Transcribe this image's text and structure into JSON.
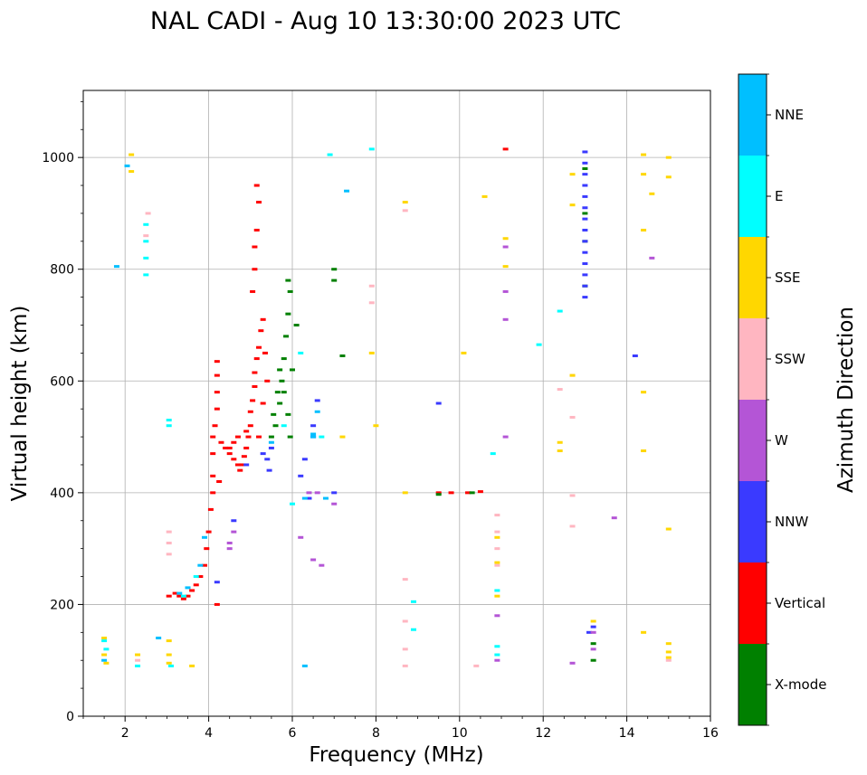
{
  "chart_data": {
    "type": "scatter",
    "title": "NAL CADI - Aug 10 13:30:00 2023 UTC",
    "xlabel": "Frequency (MHz)",
    "ylabel": "Virtual height (km)",
    "xlim": [
      1,
      16
    ],
    "ylim": [
      0,
      1120
    ],
    "xticks": [
      2,
      4,
      6,
      8,
      10,
      12,
      14,
      16
    ],
    "yticks": [
      0,
      200,
      400,
      600,
      800,
      1000
    ],
    "grid": true,
    "colorbar": {
      "label": "Azimuth Direction",
      "categories": [
        "X-mode",
        "Vertical",
        "NNW",
        "W",
        "SSW",
        "SSE",
        "E",
        "NNE"
      ],
      "colors": [
        "#008000",
        "#ff0000",
        "#3a3aff",
        "#b455d6",
        "#ffb6c1",
        "#ffd700",
        "#00ffff",
        "#00bfff"
      ]
    },
    "series": [
      {
        "name": "Vertical",
        "color": "#ff0000",
        "points": [
          [
            3.2,
            220
          ],
          [
            3.3,
            215
          ],
          [
            3.4,
            210
          ],
          [
            3.5,
            215
          ],
          [
            3.6,
            225
          ],
          [
            3.7,
            235
          ],
          [
            3.8,
            250
          ],
          [
            3.9,
            270
          ],
          [
            3.95,
            300
          ],
          [
            4.0,
            330
          ],
          [
            4.05,
            370
          ],
          [
            4.1,
            400
          ],
          [
            4.1,
            430
          ],
          [
            4.1,
            470
          ],
          [
            4.1,
            500
          ],
          [
            4.15,
            520
          ],
          [
            4.2,
            550
          ],
          [
            4.2,
            580
          ],
          [
            4.2,
            610
          ],
          [
            4.2,
            635
          ],
          [
            4.3,
            490
          ],
          [
            4.4,
            480
          ],
          [
            4.5,
            470
          ],
          [
            4.6,
            460
          ],
          [
            4.7,
            450
          ],
          [
            4.75,
            440
          ],
          [
            4.8,
            450
          ],
          [
            4.85,
            465
          ],
          [
            4.9,
            480
          ],
          [
            4.95,
            500
          ],
          [
            5.0,
            520
          ],
          [
            5.0,
            545
          ],
          [
            5.05,
            565
          ],
          [
            5.1,
            590
          ],
          [
            5.1,
            615
          ],
          [
            5.15,
            640
          ],
          [
            5.2,
            660
          ],
          [
            5.25,
            690
          ],
          [
            5.3,
            710
          ],
          [
            5.05,
            760
          ],
          [
            5.1,
            800
          ],
          [
            5.1,
            840
          ],
          [
            5.15,
            870
          ],
          [
            5.2,
            920
          ],
          [
            5.15,
            950
          ],
          [
            4.5,
            480
          ],
          [
            4.6,
            490
          ],
          [
            4.7,
            500
          ],
          [
            4.9,
            510
          ],
          [
            5.2,
            500
          ],
          [
            5.3,
            560
          ],
          [
            5.4,
            600
          ],
          [
            5.35,
            650
          ],
          [
            9.5,
            400
          ],
          [
            9.8,
            400
          ],
          [
            10.2,
            400
          ],
          [
            10.5,
            402
          ],
          [
            11.1,
            1015
          ],
          [
            4.2,
            200
          ],
          [
            4.25,
            420
          ],
          [
            3.05,
            215
          ]
        ]
      },
      {
        "name": "X-mode",
        "color": "#008000",
        "points": [
          [
            5.6,
            520
          ],
          [
            5.7,
            560
          ],
          [
            5.75,
            600
          ],
          [
            5.8,
            640
          ],
          [
            5.85,
            680
          ],
          [
            5.9,
            720
          ],
          [
            5.95,
            760
          ],
          [
            5.9,
            780
          ],
          [
            5.5,
            500
          ],
          [
            5.55,
            540
          ],
          [
            5.65,
            580
          ],
          [
            5.7,
            620
          ],
          [
            5.8,
            580
          ],
          [
            5.9,
            540
          ],
          [
            5.95,
            500
          ],
          [
            6.0,
            620
          ],
          [
            6.1,
            700
          ],
          [
            7.0,
            800
          ],
          [
            7.2,
            645
          ],
          [
            9.5,
            397
          ],
          [
            10.3,
            400
          ],
          [
            13.0,
            980
          ],
          [
            13.0,
            900
          ],
          [
            13.0,
            850
          ],
          [
            13.0,
            770
          ],
          [
            13.2,
            100
          ],
          [
            13.2,
            130
          ],
          [
            7.0,
            780
          ]
        ]
      },
      {
        "name": "NNW",
        "color": "#3a3aff",
        "points": [
          [
            13.0,
            1010
          ],
          [
            13.0,
            990
          ],
          [
            13.0,
            970
          ],
          [
            13.0,
            950
          ],
          [
            13.0,
            930
          ],
          [
            13.0,
            910
          ],
          [
            13.0,
            890
          ],
          [
            13.0,
            870
          ],
          [
            13.0,
            850
          ],
          [
            13.0,
            830
          ],
          [
            13.0,
            810
          ],
          [
            13.0,
            790
          ],
          [
            13.0,
            770
          ],
          [
            13.0,
            750
          ],
          [
            5.4,
            460
          ],
          [
            5.5,
            480
          ],
          [
            5.45,
            440
          ],
          [
            5.3,
            470
          ],
          [
            4.9,
            450
          ],
          [
            6.5,
            500
          ],
          [
            6.5,
            520
          ],
          [
            6.2,
            430
          ],
          [
            6.3,
            460
          ],
          [
            6.4,
            390
          ],
          [
            6.6,
            565
          ],
          [
            7.0,
            400
          ],
          [
            9.5,
            560
          ],
          [
            14.2,
            645
          ],
          [
            13.2,
            160
          ],
          [
            13.1,
            150
          ],
          [
            4.6,
            350
          ],
          [
            4.2,
            240
          ]
        ]
      },
      {
        "name": "W",
        "color": "#b455d6",
        "points": [
          [
            4.6,
            330
          ],
          [
            4.5,
            310
          ],
          [
            4.5,
            300
          ],
          [
            6.4,
            400
          ],
          [
            6.6,
            400
          ],
          [
            6.5,
            280
          ],
          [
            6.7,
            270
          ],
          [
            7.0,
            380
          ],
          [
            11.1,
            500
          ],
          [
            11.1,
            710
          ],
          [
            11.1,
            760
          ],
          [
            11.1,
            840
          ],
          [
            13.2,
            150
          ],
          [
            13.2,
            120
          ],
          [
            12.7,
            95
          ],
          [
            13.7,
            355
          ],
          [
            14.6,
            820
          ],
          [
            10.9,
            100
          ],
          [
            10.9,
            180
          ],
          [
            6.2,
            320
          ]
        ]
      },
      {
        "name": "SSW",
        "color": "#ffb6c1",
        "points": [
          [
            3.05,
            330
          ],
          [
            3.05,
            310
          ],
          [
            3.05,
            290
          ],
          [
            2.55,
            900
          ],
          [
            2.5,
            860
          ],
          [
            8.7,
            905
          ],
          [
            8.7,
            245
          ],
          [
            8.7,
            170
          ],
          [
            8.7,
            120
          ],
          [
            8.7,
            90
          ],
          [
            10.9,
            360
          ],
          [
            10.9,
            330
          ],
          [
            10.9,
            300
          ],
          [
            10.9,
            270
          ],
          [
            12.7,
            395
          ],
          [
            12.7,
            340
          ],
          [
            12.4,
            585
          ],
          [
            12.7,
            610
          ],
          [
            12.7,
            535
          ],
          [
            15.0,
            100
          ],
          [
            7.9,
            770
          ],
          [
            7.9,
            740
          ],
          [
            10.4,
            90
          ],
          [
            2.3,
            100
          ]
        ]
      },
      {
        "name": "SSE",
        "color": "#ffd700",
        "points": [
          [
            1.5,
            140
          ],
          [
            1.5,
            110
          ],
          [
            1.55,
            95
          ],
          [
            3.05,
            135
          ],
          [
            3.05,
            110
          ],
          [
            3.05,
            95
          ],
          [
            3.6,
            90
          ],
          [
            2.15,
            1005
          ],
          [
            2.15,
            975
          ],
          [
            8.7,
            920
          ],
          [
            8.7,
            400
          ],
          [
            12.4,
            490
          ],
          [
            12.4,
            475
          ],
          [
            12.7,
            970
          ],
          [
            12.7,
            915
          ],
          [
            12.7,
            610
          ],
          [
            14.4,
            1005
          ],
          [
            14.4,
            970
          ],
          [
            14.6,
            935
          ],
          [
            14.4,
            870
          ],
          [
            14.4,
            580
          ],
          [
            14.4,
            475
          ],
          [
            14.4,
            150
          ],
          [
            15.0,
            1000
          ],
          [
            15.0,
            965
          ],
          [
            15.0,
            335
          ],
          [
            15.0,
            130
          ],
          [
            15.0,
            115
          ],
          [
            15.0,
            105
          ],
          [
            13.2,
            170
          ],
          [
            10.9,
            320
          ],
          [
            10.9,
            275
          ],
          [
            10.9,
            215
          ],
          [
            11.1,
            855
          ],
          [
            11.1,
            805
          ],
          [
            8.0,
            520
          ],
          [
            10.1,
            650
          ],
          [
            10.6,
            930
          ],
          [
            7.9,
            650
          ],
          [
            7.2,
            500
          ],
          [
            2.3,
            110
          ]
        ]
      },
      {
        "name": "E",
        "color": "#00ffff",
        "points": [
          [
            1.5,
            135
          ],
          [
            1.55,
            120
          ],
          [
            2.5,
            880
          ],
          [
            2.5,
            850
          ],
          [
            2.5,
            820
          ],
          [
            2.5,
            790
          ],
          [
            3.05,
            530
          ],
          [
            3.05,
            520
          ],
          [
            3.1,
            90
          ],
          [
            10.8,
            470
          ],
          [
            10.9,
            225
          ],
          [
            10.9,
            125
          ],
          [
            10.9,
            110
          ],
          [
            12.4,
            725
          ],
          [
            11.9,
            665
          ],
          [
            8.9,
            205
          ],
          [
            8.9,
            155
          ],
          [
            7.9,
            1015
          ],
          [
            6.9,
            1005
          ],
          [
            6.7,
            500
          ],
          [
            6.2,
            650
          ],
          [
            6.0,
            380
          ],
          [
            5.8,
            520
          ],
          [
            3.4,
            215
          ],
          [
            3.7,
            250
          ],
          [
            2.3,
            90
          ]
        ]
      },
      {
        "name": "NNE",
        "color": "#00bfff",
        "points": [
          [
            6.6,
            545
          ],
          [
            6.5,
            500
          ],
          [
            6.8,
            390
          ],
          [
            6.5,
            505
          ],
          [
            6.3,
            390
          ],
          [
            5.5,
            490
          ],
          [
            3.9,
            320
          ],
          [
            3.8,
            270
          ],
          [
            3.5,
            230
          ],
          [
            3.3,
            220
          ],
          [
            2.8,
            140
          ],
          [
            1.8,
            805
          ],
          [
            2.05,
            985
          ],
          [
            7.3,
            940
          ],
          [
            6.3,
            90
          ],
          [
            1.5,
            100
          ]
        ]
      }
    ]
  }
}
